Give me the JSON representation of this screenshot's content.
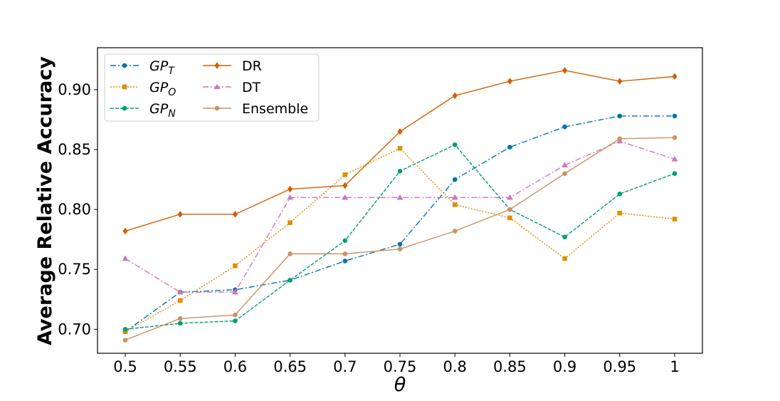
{
  "chart_data": {
    "type": "line",
    "title": "",
    "xlabel": "θ",
    "ylabel": "Average Relative Accuracy",
    "categories": [
      "0.5",
      "0.55",
      "0.6",
      "0.65",
      "0.7",
      "0.75",
      "0.8",
      "0.85",
      "0.9",
      "0.95",
      "1"
    ],
    "ylim": [
      0.68,
      0.935
    ],
    "yticks": [
      0.7,
      0.75,
      0.8,
      0.85,
      0.9
    ],
    "ytick_labels": [
      "0.70",
      "0.75",
      "0.80",
      "0.85",
      "0.90"
    ],
    "grid": false,
    "legend_position": "top-left",
    "series": [
      {
        "name": "GP_T",
        "label_base": "GP",
        "label_sub": "T",
        "color": "#0173b2",
        "dash": "8,3,2,3",
        "marker": "circle",
        "values": [
          0.698,
          0.731,
          0.733,
          0.741,
          0.757,
          0.771,
          0.825,
          0.852,
          0.869,
          0.878,
          0.878
        ]
      },
      {
        "name": "GP_O",
        "label_base": "GP",
        "label_sub": "O",
        "color": "#de8f05",
        "dash": "2,2",
        "marker": "square",
        "values": [
          0.698,
          0.724,
          0.753,
          0.789,
          0.829,
          0.851,
          0.804,
          0.793,
          0.759,
          0.797,
          0.792
        ]
      },
      {
        "name": "GP_N",
        "label_base": "GP",
        "label_sub": "N",
        "color": "#029e73",
        "dash": "5,2",
        "marker": "circle",
        "values": [
          0.7,
          0.705,
          0.707,
          0.741,
          0.774,
          0.832,
          0.854,
          0.8,
          0.777,
          0.813,
          0.83
        ]
      },
      {
        "name": "DR",
        "label_base": "DR",
        "label_sub": "",
        "color": "#d55e00",
        "dash": "",
        "marker": "diamond",
        "values": [
          0.782,
          0.796,
          0.796,
          0.817,
          0.82,
          0.865,
          0.895,
          0.907,
          0.916,
          0.907,
          0.911
        ]
      },
      {
        "name": "DT",
        "label_base": "DT",
        "label_sub": "",
        "color": "#cc78bc",
        "dash": "8,3,2,3",
        "marker": "triangle",
        "values": [
          0.759,
          0.731,
          0.731,
          0.81,
          0.81,
          0.81,
          0.81,
          0.81,
          0.837,
          0.857,
          0.842
        ]
      },
      {
        "name": "Ensemble",
        "label_base": "Ensemble",
        "label_sub": "",
        "color": "#ca9161",
        "dash": "",
        "marker": "circle",
        "values": [
          0.691,
          0.709,
          0.712,
          0.763,
          0.763,
          0.767,
          0.782,
          0.8,
          0.83,
          0.859,
          0.86
        ]
      }
    ]
  }
}
